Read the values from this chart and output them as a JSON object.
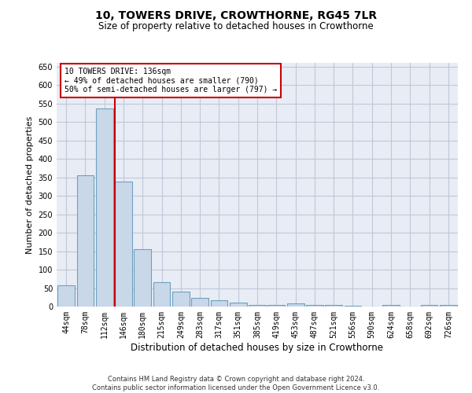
{
  "title_line1": "10, TOWERS DRIVE, CROWTHORNE, RG45 7LR",
  "title_line2": "Size of property relative to detached houses in Crowthorne",
  "xlabel": "Distribution of detached houses by size in Crowthorne",
  "ylabel": "Number of detached properties",
  "categories": [
    "44sqm",
    "78sqm",
    "112sqm",
    "146sqm",
    "180sqm",
    "215sqm",
    "249sqm",
    "283sqm",
    "317sqm",
    "351sqm",
    "385sqm",
    "419sqm",
    "453sqm",
    "487sqm",
    "521sqm",
    "556sqm",
    "590sqm",
    "624sqm",
    "658sqm",
    "692sqm",
    "726sqm"
  ],
  "values": [
    57,
    355,
    537,
    338,
    155,
    67,
    40,
    23,
    17,
    10,
    4,
    4,
    8,
    4,
    4,
    3,
    0,
    5,
    0,
    4,
    4
  ],
  "bar_color": "#c8d8e8",
  "bar_edge_color": "#6ea0c0",
  "bar_linewidth": 0.8,
  "red_line_x": 2.55,
  "annotation_box_text": "10 TOWERS DRIVE: 136sqm\n← 49% of detached houses are smaller (790)\n50% of semi-detached houses are larger (797) →",
  "ylim": [
    0,
    660
  ],
  "yticks": [
    0,
    50,
    100,
    150,
    200,
    250,
    300,
    350,
    400,
    450,
    500,
    550,
    600,
    650
  ],
  "grid_color": "#c0c8d8",
  "background_color": "#e8edf5",
  "footer_line1": "Contains HM Land Registry data © Crown copyright and database right 2024.",
  "footer_line2": "Contains public sector information licensed under the Open Government Licence v3.0.",
  "red_line_color": "#cc0000",
  "annotation_fontsize": 7.0,
  "title1_fontsize": 10,
  "title2_fontsize": 8.5,
  "ylabel_fontsize": 8,
  "xlabel_fontsize": 8.5,
  "tick_fontsize": 7
}
